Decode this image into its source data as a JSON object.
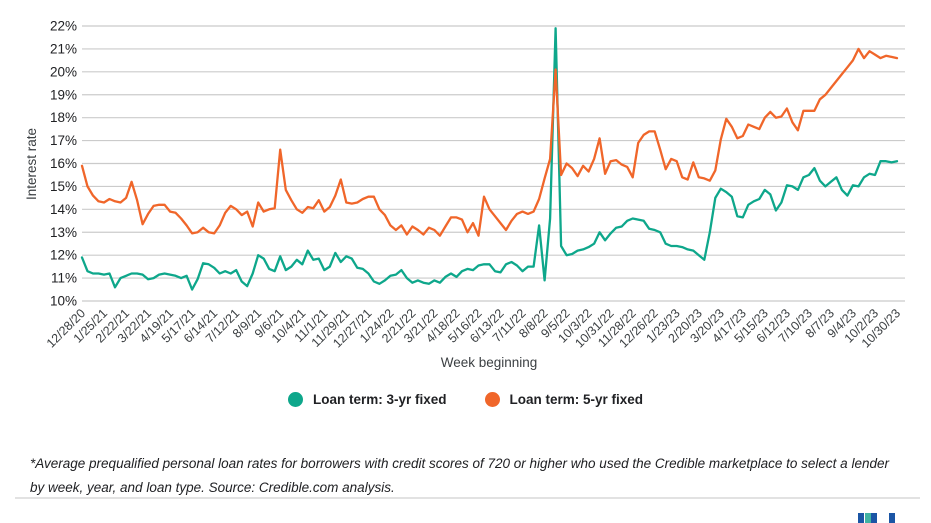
{
  "chart_data": {
    "type": "line",
    "title": "",
    "xlabel": "Week beginning",
    "ylabel": "Interest rate",
    "x_start": "12/28/20",
    "x_interval": "weekly",
    "x_tick_every_n_points": 4,
    "x_tick_labels": [
      "12/28/20",
      "1/25/21",
      "2/22/21",
      "3/22/21",
      "4/19/21",
      "5/17/21",
      "6/14/21",
      "7/12/21",
      "8/9/21",
      "9/6/21",
      "10/4/21",
      "11/1/21",
      "11/29/21",
      "12/27/21",
      "1/24/22",
      "2/21/22",
      "3/21/22",
      "4/18/22",
      "5/16/22",
      "6/13/22",
      "7/11/22",
      "8/8/22",
      "9/5/22",
      "10/3/22",
      "10/31/22",
      "11/28/22",
      "12/26/22",
      "1/23/23",
      "2/20/23",
      "3/20/23",
      "4/17/23",
      "5/15/23",
      "6/12/23",
      "7/10/23",
      "8/7/23",
      "9/4/23",
      "10/2/23",
      "10/30/23"
    ],
    "ylim": [
      10,
      22
    ],
    "y_tick_labels": [
      "10%",
      "11%",
      "12%",
      "13%",
      "14%",
      "15%",
      "16%",
      "17%",
      "18%",
      "19%",
      "20%",
      "21%",
      "22%"
    ],
    "grid": "horizontal",
    "legend_position": "bottom",
    "series": [
      {
        "name": "Loan term: 3-yr fixed",
        "color": "#0ea78b",
        "values": [
          11.9,
          11.3,
          11.2,
          11.2,
          11.15,
          11.2,
          10.6,
          11.0,
          11.1,
          11.2,
          11.2,
          11.15,
          10.95,
          11.0,
          11.15,
          11.2,
          11.15,
          11.1,
          11.0,
          11.1,
          10.5,
          10.95,
          11.65,
          11.6,
          11.45,
          11.2,
          11.3,
          11.2,
          11.35,
          10.85,
          10.65,
          11.2,
          12.0,
          11.85,
          11.4,
          11.3,
          11.95,
          11.35,
          11.5,
          11.8,
          11.6,
          12.2,
          11.8,
          11.85,
          11.35,
          11.5,
          12.1,
          11.7,
          11.95,
          11.85,
          11.45,
          11.4,
          11.2,
          10.85,
          10.75,
          10.9,
          11.1,
          11.15,
          11.35,
          11.0,
          10.8,
          10.9,
          10.8,
          10.75,
          10.9,
          10.8,
          11.05,
          11.2,
          11.05,
          11.3,
          11.4,
          11.35,
          11.55,
          11.6,
          11.6,
          11.3,
          11.25,
          11.6,
          11.7,
          11.55,
          11.3,
          11.5,
          11.5,
          13.3,
          10.9,
          13.6,
          21.9,
          12.4,
          12.0,
          12.05,
          12.2,
          12.25,
          12.35,
          12.5,
          13.0,
          12.65,
          12.95,
          13.2,
          13.25,
          13.5,
          13.6,
          13.55,
          13.5,
          13.15,
          13.1,
          13.0,
          12.5,
          12.4,
          12.4,
          12.35,
          12.25,
          12.2,
          12.0,
          11.8,
          13.0,
          14.5,
          14.9,
          14.75,
          14.55,
          13.7,
          13.65,
          14.2,
          14.35,
          14.45,
          14.85,
          14.65,
          13.95,
          14.3,
          15.05,
          15.0,
          14.85,
          15.4,
          15.5,
          15.8,
          15.25,
          15.0,
          15.2,
          15.4,
          14.85,
          14.6,
          15.05,
          15.0,
          15.4,
          15.55,
          15.5,
          16.1,
          16.1,
          16.05,
          16.1
        ]
      },
      {
        "name": "Loan term: 5-yr fixed",
        "color": "#f0662a",
        "values": [
          15.9,
          15.0,
          14.6,
          14.35,
          14.3,
          14.45,
          14.35,
          14.3,
          14.5,
          15.2,
          14.4,
          13.35,
          13.8,
          14.15,
          14.2,
          14.2,
          13.9,
          13.85,
          13.6,
          13.3,
          12.95,
          13.0,
          13.2,
          13.0,
          12.95,
          13.3,
          13.85,
          14.15,
          14.0,
          13.75,
          13.9,
          13.25,
          14.3,
          13.9,
          14.0,
          14.05,
          16.6,
          14.85,
          14.4,
          14.0,
          13.85,
          14.1,
          14.05,
          14.4,
          13.9,
          14.1,
          14.6,
          15.3,
          14.3,
          14.25,
          14.3,
          14.45,
          14.55,
          14.55,
          14.0,
          13.75,
          13.3,
          13.1,
          13.3,
          12.9,
          13.25,
          13.1,
          12.9,
          13.2,
          13.1,
          12.85,
          13.25,
          13.65,
          13.65,
          13.55,
          13.0,
          13.4,
          12.85,
          14.55,
          14.0,
          13.7,
          13.4,
          13.1,
          13.5,
          13.8,
          13.9,
          13.8,
          13.9,
          14.45,
          15.35,
          16.2,
          20.1,
          15.5,
          16.0,
          15.8,
          15.45,
          15.9,
          15.65,
          16.2,
          17.1,
          15.55,
          16.1,
          16.15,
          15.95,
          15.85,
          15.4,
          16.9,
          17.25,
          17.4,
          17.4,
          16.6,
          15.75,
          16.2,
          16.1,
          15.4,
          15.3,
          16.05,
          15.4,
          15.35,
          15.25,
          15.7,
          17.05,
          17.95,
          17.6,
          17.1,
          17.2,
          17.7,
          17.6,
          17.5,
          18.0,
          18.25,
          18.0,
          18.05,
          18.4,
          17.8,
          17.45,
          18.3,
          18.3,
          18.3,
          18.8,
          19.0,
          19.3,
          19.6,
          19.9,
          20.2,
          20.5,
          21.0,
          20.6,
          20.9,
          20.75,
          20.6,
          20.7,
          20.65,
          20.6
        ]
      }
    ]
  },
  "legend": {
    "items": [
      {
        "label": "Loan term: 3-yr fixed",
        "color": "#0ea78b"
      },
      {
        "label": "Loan term: 5-yr fixed",
        "color": "#f0662a"
      }
    ]
  },
  "footnote": "*Average prequalified personal loan rates for borrowers with credit scores of 720 or higher who used the Credible marketplace to select a lender by week, year, and loan type. Source: Credible.com analysis.",
  "colors": {
    "grid": "#cbcbcb",
    "tick_text": "#202124",
    "axis_text": "#3c4043",
    "logo_blue": "#1b55a5",
    "logo_teal": "#41b3a3"
  },
  "logo_blocks": [
    {
      "x": 858,
      "w": 6,
      "color": "#1b55a5"
    },
    {
      "x": 864.5,
      "w": 6,
      "color": "#41b3a3"
    },
    {
      "x": 871,
      "w": 6,
      "color": "#1b55a5"
    },
    {
      "x": 889,
      "w": 6,
      "color": "#1b55a5"
    }
  ]
}
